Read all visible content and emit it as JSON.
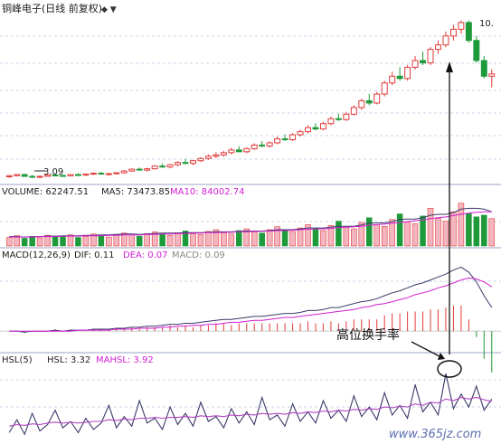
{
  "title_bar": {
    "stock_title": "铜峰电子(日线 前复权)",
    "arrow_glyphs": "◆ ▼"
  },
  "price_panel": {
    "high_label": "10.",
    "low_label": "3.09",
    "candles": [
      [
        3.1,
        3.18,
        3.05,
        3.15
      ],
      [
        3.15,
        3.22,
        3.12,
        3.2
      ],
      [
        3.2,
        3.24,
        3.1,
        3.12
      ],
      [
        3.12,
        3.18,
        3.05,
        3.08
      ],
      [
        3.08,
        3.15,
        3.03,
        3.12
      ],
      [
        3.12,
        3.2,
        3.1,
        3.18
      ],
      [
        3.18,
        3.24,
        3.14,
        3.16
      ],
      [
        3.16,
        3.2,
        3.1,
        3.14
      ],
      [
        3.14,
        3.22,
        3.12,
        3.2
      ],
      [
        3.2,
        3.26,
        3.16,
        3.18
      ],
      [
        3.18,
        3.24,
        3.14,
        3.22
      ],
      [
        3.22,
        3.3,
        3.18,
        3.26
      ],
      [
        3.26,
        3.32,
        3.2,
        3.22
      ],
      [
        3.22,
        3.28,
        3.16,
        3.24
      ],
      [
        3.24,
        3.3,
        3.2,
        3.28
      ],
      [
        3.28,
        3.4,
        3.24,
        3.36
      ],
      [
        3.36,
        3.48,
        3.32,
        3.44
      ],
      [
        3.44,
        3.52,
        3.38,
        3.4
      ],
      [
        3.4,
        3.5,
        3.34,
        3.46
      ],
      [
        3.46,
        3.62,
        3.42,
        3.58
      ],
      [
        3.58,
        3.7,
        3.5,
        3.54
      ],
      [
        3.54,
        3.68,
        3.48,
        3.64
      ],
      [
        3.64,
        3.8,
        3.58,
        3.74
      ],
      [
        3.74,
        3.9,
        3.66,
        3.7
      ],
      [
        3.7,
        3.86,
        3.62,
        3.82
      ],
      [
        3.82,
        3.98,
        3.76,
        3.92
      ],
      [
        3.92,
        4.1,
        3.86,
        4.02
      ],
      [
        4.02,
        4.2,
        3.94,
        4.08
      ],
      [
        4.08,
        4.26,
        4.0,
        4.18
      ],
      [
        4.18,
        4.4,
        4.1,
        4.3
      ],
      [
        4.3,
        4.46,
        4.2,
        4.22
      ],
      [
        4.22,
        4.42,
        4.16,
        4.36
      ],
      [
        4.36,
        4.6,
        4.3,
        4.52
      ],
      [
        4.52,
        4.7,
        4.42,
        4.48
      ],
      [
        4.48,
        4.68,
        4.4,
        4.62
      ],
      [
        4.62,
        4.9,
        4.56,
        4.8
      ],
      [
        4.8,
        5.0,
        4.7,
        4.76
      ],
      [
        4.76,
        5.06,
        4.7,
        4.98
      ],
      [
        4.98,
        5.2,
        4.9,
        5.12
      ],
      [
        5.12,
        5.4,
        5.04,
        5.3
      ],
      [
        5.3,
        5.5,
        5.18,
        5.24
      ],
      [
        5.24,
        5.56,
        5.18,
        5.48
      ],
      [
        5.48,
        5.8,
        5.4,
        5.7
      ],
      [
        5.7,
        5.92,
        5.6,
        5.66
      ],
      [
        5.66,
        6.0,
        5.6,
        5.9
      ],
      [
        5.9,
        6.3,
        5.84,
        6.2
      ],
      [
        6.2,
        6.6,
        6.1,
        6.5
      ],
      [
        6.5,
        6.8,
        6.3,
        6.4
      ],
      [
        6.4,
        6.9,
        6.34,
        6.8
      ],
      [
        6.8,
        7.4,
        6.7,
        7.3
      ],
      [
        7.3,
        7.8,
        7.2,
        7.6
      ],
      [
        7.6,
        8.0,
        7.4,
        7.5
      ],
      [
        7.5,
        8.1,
        7.4,
        8.0
      ],
      [
        8.0,
        8.5,
        7.9,
        8.3
      ],
      [
        8.3,
        8.7,
        8.1,
        8.2
      ],
      [
        8.2,
        8.9,
        8.1,
        8.8
      ],
      [
        8.8,
        9.2,
        8.6,
        9.0
      ],
      [
        9.0,
        9.6,
        8.9,
        9.4
      ],
      [
        9.4,
        9.9,
        9.2,
        9.7
      ],
      [
        9.7,
        10.1,
        9.5,
        10.0
      ],
      [
        10.0,
        10.1,
        9.1,
        9.2
      ],
      [
        9.2,
        9.4,
        8.2,
        8.3
      ],
      [
        8.3,
        8.5,
        7.5,
        7.6
      ],
      [
        7.6,
        7.9,
        7.1,
        7.7
      ]
    ]
  },
  "volume_panel": {
    "label": "VOLUME: 62247.51",
    "ma5": "MA5: 73473.85",
    "ma10": "MA10: 84002.74",
    "values": [
      20,
      24,
      18,
      22,
      19,
      25,
      21,
      23,
      26,
      20,
      22,
      28,
      24,
      21,
      27,
      30,
      26,
      23,
      29,
      33,
      28,
      25,
      31,
      35,
      29,
      27,
      34,
      38,
      31,
      28,
      36,
      40,
      33,
      30,
      38,
      45,
      37,
      34,
      42,
      50,
      40,
      36,
      48,
      58,
      44,
      40,
      55,
      66,
      50,
      46,
      62,
      75,
      56,
      52,
      70,
      88,
      64,
      58,
      80,
      100,
      76,
      68,
      72,
      64
    ],
    "ma5_values": [
      22,
      22,
      21,
      22,
      22,
      23,
      23,
      24,
      24,
      24,
      25,
      25,
      26,
      26,
      27,
      28,
      28,
      27,
      28,
      29,
      30,
      30,
      30,
      31,
      31,
      31,
      32,
      33,
      33,
      33,
      34,
      35,
      35,
      35,
      36,
      38,
      38,
      38,
      40,
      42,
      42,
      42,
      44,
      46,
      46,
      46,
      49,
      53,
      54,
      54,
      57,
      62,
      63,
      63,
      66,
      72,
      74,
      74,
      78,
      86,
      88,
      88,
      86,
      80
    ],
    "ma10_values": [
      21,
      21,
      21,
      21,
      22,
      22,
      22,
      23,
      23,
      23,
      24,
      24,
      24,
      25,
      25,
      26,
      26,
      26,
      27,
      27,
      28,
      28,
      29,
      29,
      30,
      30,
      31,
      31,
      32,
      32,
      33,
      33,
      34,
      34,
      35,
      36,
      36,
      37,
      38,
      39,
      40,
      40,
      41,
      43,
      44,
      45,
      46,
      48,
      50,
      51,
      53,
      55,
      57,
      59,
      61,
      64,
      66,
      68,
      71,
      74,
      77,
      79,
      80,
      80
    ]
  },
  "macd_panel": {
    "label": "MACD(12,26,9)",
    "dif": "DIF: 0.11",
    "dea": "DEA: 0.07",
    "macd": "MACD: 0.09",
    "dif_values": [
      0.0,
      0.0,
      -0.01,
      0.0,
      0.0,
      0.0,
      0.01,
      0.0,
      0.01,
      0.01,
      0.01,
      0.02,
      0.02,
      0.02,
      0.03,
      0.03,
      0.04,
      0.04,
      0.05,
      0.05,
      0.06,
      0.07,
      0.07,
      0.08,
      0.08,
      0.09,
      0.1,
      0.11,
      0.12,
      0.12,
      0.13,
      0.14,
      0.15,
      0.15,
      0.16,
      0.17,
      0.18,
      0.18,
      0.19,
      0.21,
      0.21,
      0.22,
      0.24,
      0.24,
      0.26,
      0.28,
      0.3,
      0.31,
      0.33,
      0.36,
      0.39,
      0.41,
      0.44,
      0.47,
      0.49,
      0.52,
      0.55,
      0.58,
      0.62,
      0.65,
      0.6,
      0.5,
      0.36,
      0.24
    ],
    "dea_values": [
      0.0,
      0.0,
      0.0,
      0.0,
      0.0,
      0.0,
      0.0,
      0.0,
      0.0,
      0.01,
      0.01,
      0.01,
      0.01,
      0.01,
      0.02,
      0.02,
      0.02,
      0.03,
      0.03,
      0.03,
      0.04,
      0.04,
      0.05,
      0.05,
      0.06,
      0.06,
      0.07,
      0.07,
      0.08,
      0.09,
      0.09,
      0.1,
      0.11,
      0.11,
      0.12,
      0.13,
      0.14,
      0.14,
      0.15,
      0.16,
      0.17,
      0.18,
      0.19,
      0.2,
      0.21,
      0.22,
      0.24,
      0.25,
      0.27,
      0.28,
      0.3,
      0.32,
      0.34,
      0.37,
      0.39,
      0.41,
      0.44,
      0.46,
      0.49,
      0.52,
      0.54,
      0.53,
      0.5,
      0.45
    ]
  },
  "hsl_panel": {
    "label": "HSL(5)",
    "hsl": "HSL: 3.32",
    "mahsl": "MAHSL: 3.92",
    "values": [
      1.2,
      2.8,
      1.0,
      3.6,
      1.4,
      2.2,
      4.0,
      1.8,
      2.6,
      1.2,
      3.0,
      1.6,
      2.4,
      4.6,
      1.8,
      3.2,
      2.0,
      5.2,
      2.4,
      3.0,
      1.6,
      4.4,
      2.2,
      3.6,
      2.0,
      5.0,
      2.6,
      3.2,
      1.8,
      4.2,
      2.4,
      3.8,
      2.2,
      5.6,
      2.8,
      3.4,
      2.0,
      4.8,
      2.6,
      3.8,
      2.4,
      5.2,
      3.0,
      4.0,
      2.6,
      5.8,
      3.2,
      4.4,
      2.8,
      6.2,
      3.4,
      4.6,
      3.0,
      7.2,
      3.8,
      5.0,
      3.4,
      8.6,
      4.2,
      6.0,
      4.4,
      7.0,
      4.0,
      5.4
    ],
    "ma_values": [
      2.0,
      2.2,
      2.1,
      2.3,
      2.2,
      2.4,
      2.5,
      2.4,
      2.5,
      2.4,
      2.5,
      2.6,
      2.6,
      2.8,
      2.7,
      2.9,
      2.8,
      3.0,
      3.0,
      3.1,
      3.0,
      3.1,
      3.1,
      3.2,
      3.1,
      3.3,
      3.2,
      3.3,
      3.2,
      3.4,
      3.3,
      3.5,
      3.4,
      3.6,
      3.5,
      3.6,
      3.5,
      3.7,
      3.6,
      3.8,
      3.7,
      3.9,
      3.8,
      4.0,
      3.9,
      4.1,
      4.0,
      4.2,
      4.1,
      4.4,
      4.3,
      4.5,
      4.4,
      4.8,
      4.6,
      5.0,
      4.9,
      5.4,
      5.2,
      5.6,
      5.4,
      5.6,
      5.3,
      5.1
    ]
  },
  "annotation": {
    "text": "高位换手率"
  },
  "watermark": {
    "text": "www.365jz.com"
  },
  "colors": {
    "up": "#e23a3a",
    "down": "#1f9a3a",
    "dea": "#d21fd2",
    "ma_alt": "#b146c2",
    "line_dark": "#3a3a6a",
    "grid": "#c9d4ea"
  }
}
